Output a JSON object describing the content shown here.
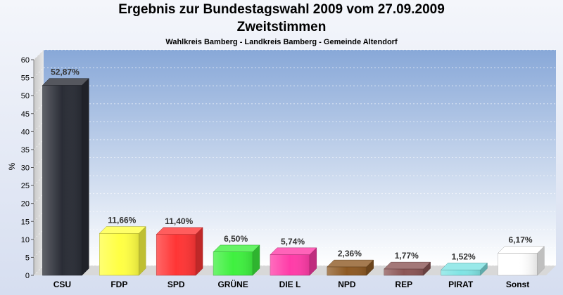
{
  "chart_data": {
    "type": "bar",
    "title": "Ergebnis zur Bundestagswahl 2009 vom 27.09.2009",
    "subtitle": "Zweitstimmen",
    "caption": "Wahlkreis Bamberg - Landkreis Bamberg - Gemeinde Altendorf",
    "ylabel": "%",
    "ylim": [
      0,
      60
    ],
    "yticks": [
      0,
      5,
      10,
      15,
      20,
      25,
      30,
      35,
      40,
      45,
      50,
      55,
      60
    ],
    "grid": true,
    "categories": [
      "CSU",
      "FDP",
      "SPD",
      "GRÜNE",
      "DIE L",
      "NPD",
      "REP",
      "PIRAT",
      "Sonst"
    ],
    "values": [
      52.87,
      11.66,
      11.4,
      6.5,
      5.74,
      2.36,
      1.77,
      1.52,
      6.17
    ],
    "value_labels": [
      "52,87%",
      "11,66%",
      "11,40%",
      "6,50%",
      "5,74%",
      "2,36%",
      "1,77%",
      "1,52%",
      "6,17%"
    ],
    "colors": [
      "#2a2d36",
      "#ffff44",
      "#ff3535",
      "#3ff03f",
      "#ff3ca8",
      "#8e5a24",
      "#8c5656",
      "#80e4e4",
      "#ffffff"
    ]
  }
}
